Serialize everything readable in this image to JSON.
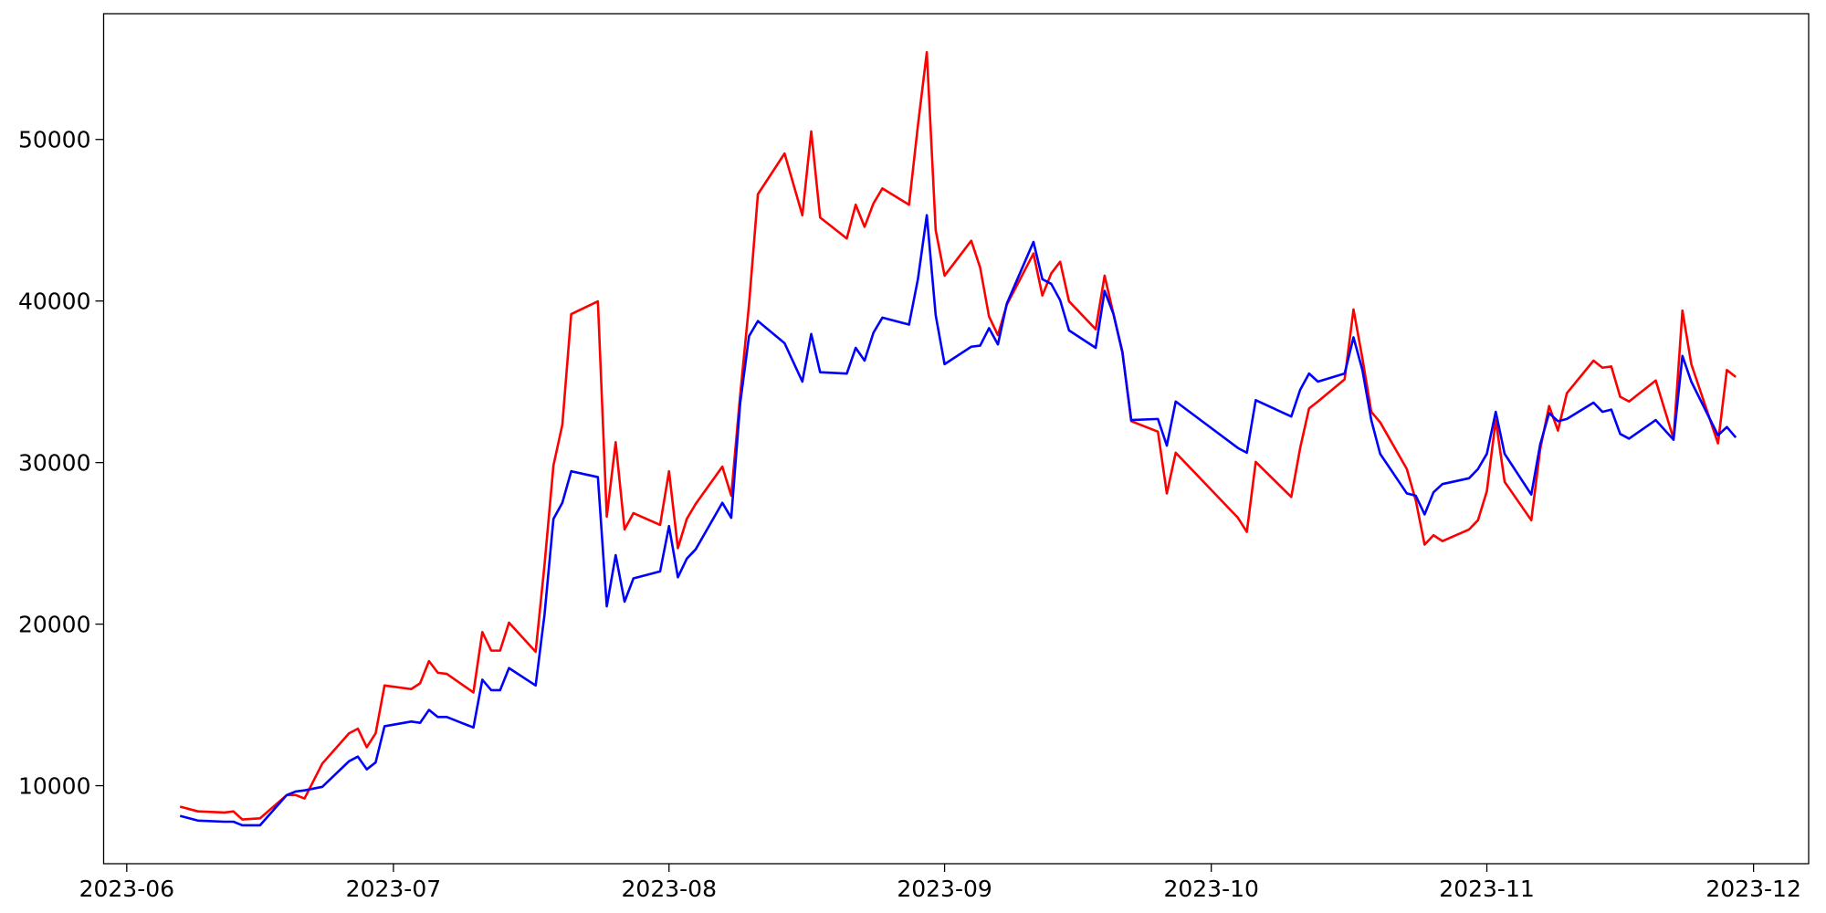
{
  "chart_data": {
    "type": "line",
    "x": [
      19515,
      19517,
      19520,
      19521,
      19522,
      19524,
      19527,
      19528,
      19529,
      19531,
      19534,
      19535,
      19536,
      19537,
      19538,
      19541,
      19542,
      19543,
      19544,
      19545,
      19548,
      19549,
      19550,
      19551,
      19552,
      19555,
      19556,
      19557,
      19558,
      19559,
      19562,
      19563,
      19564,
      19565,
      19566,
      19569,
      19570,
      19571,
      19572,
      19573,
      19576,
      19577,
      19578,
      19579,
      19580,
      19583,
      19585,
      19586,
      19587,
      19590,
      19591,
      19592,
      19593,
      19594,
      19597,
      19598,
      19599,
      19600,
      19601,
      19604,
      19605,
      19606,
      19607,
      19608,
      19611,
      19612,
      19613,
      19614,
      19615,
      19618,
      19619,
      19620,
      19621,
      19622,
      19625,
      19626,
      19627,
      19634,
      19635,
      19636,
      19640,
      19641,
      19642,
      19643,
      19646,
      19647,
      19648,
      19649,
      19650,
      19653,
      19654,
      19655,
      19656,
      19657,
      19660,
      19661,
      19662,
      19663,
      19664,
      19667,
      19668,
      19669,
      19670,
      19671,
      19674,
      19675,
      19676,
      19677,
      19678,
      19681,
      19683,
      19684,
      19685,
      19688,
      19689,
      19690
    ],
    "series": [
      {
        "color": "red",
        "values": [
          8700,
          8410,
          8340,
          8410,
          7910,
          7980,
          9420,
          9420,
          9210,
          11370,
          13240,
          13530,
          12380,
          13240,
          16200,
          15980,
          16340,
          17710,
          16990,
          16920,
          15770,
          19510,
          18360,
          18360,
          20090,
          18290,
          23690,
          29820,
          32340,
          39190,
          39980,
          26650,
          31260,
          25860,
          26870,
          26140,
          29460,
          24700,
          26510,
          27440,
          29750,
          27950,
          34140,
          39770,
          46610,
          49130,
          45310,
          50500,
          45170,
          43870,
          45960,
          44590,
          46040,
          46970,
          45960,
          50860,
          55400,
          44380,
          41570,
          43730,
          42070,
          39040,
          37890,
          39770,
          42940,
          40340,
          41710,
          42430,
          39980,
          38250,
          41570,
          39190,
          36880,
          32560,
          31910,
          28090,
          30610,
          26580,
          25710,
          30040,
          27870,
          30900,
          33350,
          33780,
          35150,
          39480,
          36450,
          33140,
          32490,
          29600,
          27660,
          24920,
          25500,
          25140,
          25860,
          26430,
          28230,
          32630,
          28810,
          26430,
          30830,
          33500,
          31980,
          34290,
          36310,
          35870,
          35950,
          34070,
          33780,
          35080,
          31480,
          39410,
          36090,
          31190,
          35730,
          35300
        ]
      },
      {
        "color": "blue",
        "values": [
          8130,
          7840,
          7770,
          7770,
          7550,
          7550,
          9420,
          9640,
          9710,
          9930,
          11510,
          11800,
          11010,
          11440,
          13680,
          13970,
          13890,
          14690,
          14250,
          14250,
          13600,
          16560,
          15910,
          15910,
          17280,
          16200,
          20600,
          26510,
          27510,
          29460,
          29100,
          21100,
          24270,
          21390,
          22830,
          23260,
          26070,
          22900,
          24050,
          24630,
          27510,
          26580,
          33640,
          37820,
          38760,
          37390,
          35010,
          37960,
          35590,
          35510,
          37100,
          36310,
          38040,
          38970,
          38540,
          41350,
          45310,
          39120,
          36090,
          37170,
          37240,
          38320,
          37310,
          39840,
          43660,
          41350,
          41060,
          40050,
          38180,
          37100,
          40630,
          39190,
          36810,
          32630,
          32700,
          31050,
          33780,
          30900,
          30610,
          33860,
          32850,
          34500,
          35510,
          35010,
          35510,
          37750,
          35730,
          32630,
          30540,
          28090,
          27950,
          26790,
          28160,
          28670,
          29030,
          29600,
          30540,
          33140,
          30540,
          28020,
          31120,
          33060,
          32560,
          32700,
          33710,
          33140,
          33280,
          31770,
          31480,
          32630,
          31410,
          36600,
          35010,
          31690,
          32200,
          31550
        ]
      }
    ],
    "xlim": [
      19506.4,
      19698.2
    ],
    "xticks": [
      {
        "value": 19509,
        "label": "2023-06"
      },
      {
        "value": 19539,
        "label": "2023-07"
      },
      {
        "value": 19570,
        "label": "2023-08"
      },
      {
        "value": 19601,
        "label": "2023-09"
      },
      {
        "value": 19631,
        "label": "2023-10"
      },
      {
        "value": 19662,
        "label": "2023-11"
      },
      {
        "value": 19692,
        "label": "2023-12"
      }
    ],
    "ylim": [
      5171,
      57784
    ],
    "yticks": [
      10000,
      20000,
      30000,
      40000,
      50000
    ],
    "grid": false
  }
}
